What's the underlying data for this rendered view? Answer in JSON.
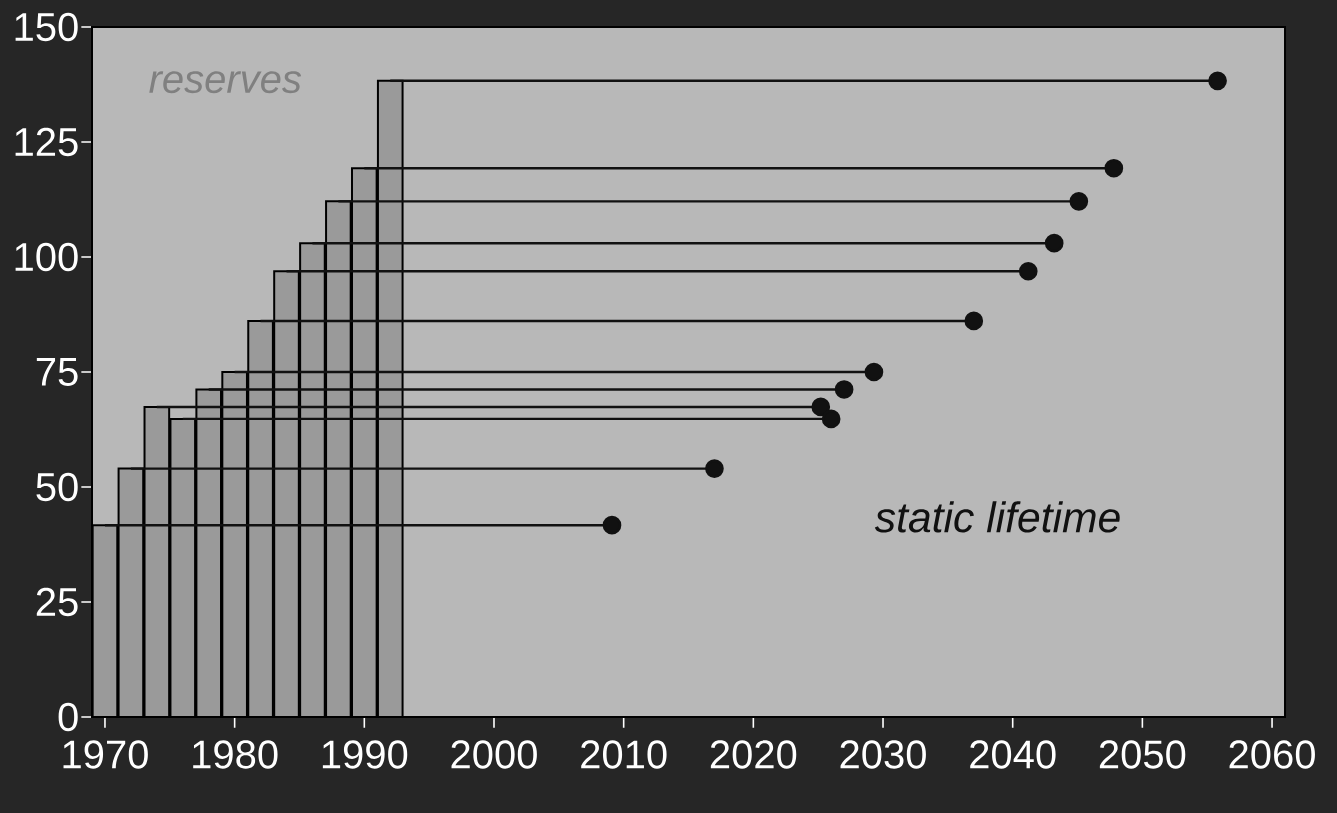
{
  "chart_data": {
    "type": "bar",
    "xlim": [
      1969,
      2061
    ],
    "ylim": [
      0,
      150
    ],
    "xticks": [
      1970,
      1980,
      1990,
      2000,
      2010,
      2020,
      2030,
      2040,
      2050,
      2060
    ],
    "yticks": [
      0,
      25,
      50,
      75,
      100,
      125,
      150
    ],
    "series": [
      {
        "name": "reserves",
        "color": "#9a9a9a",
        "x": [
          1970,
          1972,
          1974,
          1976,
          1978,
          1980,
          1982,
          1984,
          1986,
          1988,
          1990,
          1992
        ],
        "values": [
          41.7,
          54,
          67.4,
          64.8,
          71.2,
          75,
          86.1,
          96.9,
          103,
          112.1,
          119.3,
          138.3
        ]
      },
      {
        "type": "line",
        "color": "#111111",
        "x": [
          1970,
          2009.1
        ],
        "values": [
          41.7,
          41.7
        ]
      },
      {
        "type": "line",
        "color": "#111111",
        "x": [
          1972,
          2017
        ],
        "values": [
          54,
          54
        ]
      },
      {
        "type": "line",
        "color": "#111111",
        "x": [
          1974,
          2025.2
        ],
        "values": [
          67.4,
          67.4
        ]
      },
      {
        "type": "line",
        "color": "#111111",
        "x": [
          1976,
          2026
        ],
        "values": [
          64.8,
          64.8
        ]
      },
      {
        "type": "line",
        "color": "#111111",
        "x": [
          1978,
          2027
        ],
        "values": [
          71.2,
          71.2
        ]
      },
      {
        "type": "line",
        "color": "#111111",
        "x": [
          1980,
          2029.3
        ],
        "values": [
          75,
          75
        ]
      },
      {
        "type": "line",
        "color": "#111111",
        "x": [
          1982,
          2037
        ],
        "values": [
          86.1,
          86.1
        ]
      },
      {
        "type": "line",
        "color": "#111111",
        "x": [
          1984,
          2041.2
        ],
        "values": [
          96.9,
          96.9
        ]
      },
      {
        "type": "line",
        "color": "#111111",
        "x": [
          1986,
          2043.2
        ],
        "values": [
          103,
          103
        ]
      },
      {
        "type": "line",
        "color": "#111111",
        "x": [
          1988,
          2045.1
        ],
        "values": [
          112.1,
          112.1
        ]
      },
      {
        "type": "line",
        "color": "#111111",
        "x": [
          1990,
          2047.8
        ],
        "values": [
          119.3,
          119.3
        ]
      },
      {
        "type": "line",
        "color": "#111111",
        "x": [
          1992,
          2055.8
        ],
        "values": [
          138.3,
          138.3
        ]
      },
      {
        "name": "static lifetime",
        "type": "scatter",
        "color": "#111111",
        "marker": "circle",
        "x": [
          2009.1,
          2017,
          2025.2,
          2026,
          2027,
          2029.3,
          2037,
          2041.2,
          2043.2,
          2045.1,
          2047.8,
          2055.8
        ],
        "values": [
          41.7,
          54,
          67.4,
          64.8,
          71.2,
          75,
          86.1,
          96.9,
          103,
          112.1,
          119.3,
          138.3
        ]
      }
    ]
  }
}
